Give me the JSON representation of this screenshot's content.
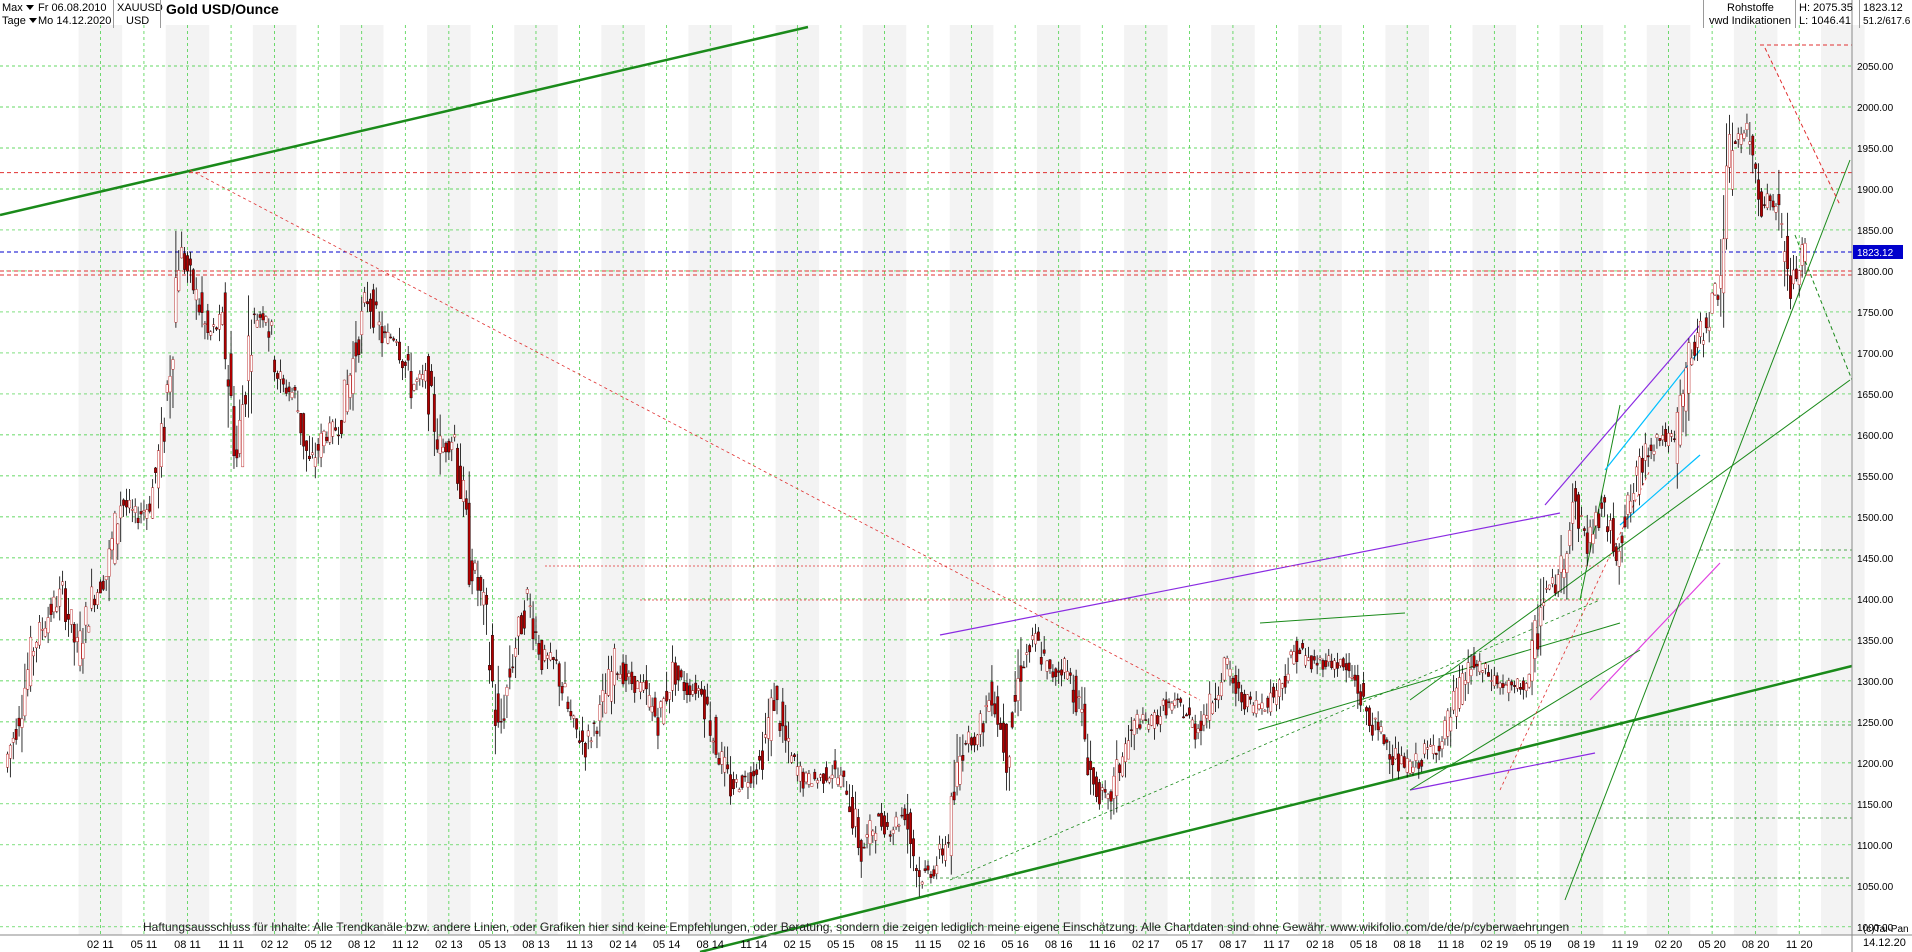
{
  "header": {
    "period": "Max",
    "interval": "Tage",
    "from_date": "Fr 06.08.2010",
    "to_date": "Mo 14.12.2020",
    "symbol": "XAUUSD",
    "currency": "USD",
    "title": "Gold USD/Ounce",
    "category": "Rohstoffe",
    "source": "vwd Indikationen",
    "high": "H: 2075.35",
    "low": "L: 1046.41",
    "last": "1823.12",
    "ratio": "51.2/617.6"
  },
  "footer": {
    "disclaimer": "Haftungsausschluss für Inhalte: Alle Trendkanäle bzw. andere Linien, oder Grafiken hier sind keine Empfehlungen, oder Beratung, sondern die zeigen lediglich meine eigene Einschätzung. Alle Chartdaten sind ohne Gewähr.  www.wikifolio.com/de/de/p/cyberwaehrungen",
    "copyright": "(c)Tai-Pan",
    "end_date": "14.12.20"
  },
  "colors": {
    "candle": "#b00000",
    "grid": "#33cc33",
    "trend_green": "#1a8a1a",
    "trend_purple": "#8a2be2",
    "trend_red": "#e03030",
    "current_price": "#0000cc",
    "cyan": "#00bfff",
    "magenta": "#e040e0"
  },
  "chart_data": {
    "type": "line",
    "title": "Gold USD/Ounce",
    "xlabel": "",
    "ylabel": "",
    "ylim": [
      990,
      2100
    ],
    "y_ticks": [
      1000,
      1050,
      1100,
      1150,
      1200,
      1250,
      1300,
      1350,
      1400,
      1450,
      1500,
      1550,
      1600,
      1650,
      1700,
      1750,
      1800,
      1850,
      1900,
      1950,
      2000,
      2050
    ],
    "x_ticks": [
      "02 11",
      "05 11",
      "08 11",
      "11 11",
      "02 12",
      "05 12",
      "08 12",
      "11 12",
      "02 13",
      "05 13",
      "08 13",
      "11 13",
      "02 14",
      "05 14",
      "08 14",
      "11 14",
      "02 15",
      "05 15",
      "08 15",
      "11 15",
      "02 16",
      "05 16",
      "08 16",
      "11 16",
      "02 17",
      "05 17",
      "08 17",
      "11 17",
      "02 18",
      "05 18",
      "08 18",
      "11 18",
      "02 19",
      "05 19",
      "08 19",
      "11 19",
      "02 20",
      "05 20",
      "08 20",
      "11 20"
    ],
    "current_price": 1823.12,
    "series": [
      {
        "x": [
          "08.2010",
          "09.2010",
          "10.2010",
          "11.2010",
          "12.2010",
          "01.2011",
          "02.2011",
          "03.2011",
          "04.2011",
          "05.2011",
          "06.2011",
          "07.2011",
          "08.2011",
          "09.2011",
          "10.2011",
          "11.2011",
          "12.2011",
          "01.2012",
          "02.2012",
          "03.2012",
          "04.2012",
          "05.2012",
          "06.2012",
          "07.2012",
          "08.2012",
          "09.2012",
          "10.2012",
          "11.2012",
          "12.2012",
          "01.2013",
          "02.2013",
          "03.2013",
          "04.2013",
          "05.2013",
          "06.2013",
          "07.2013",
          "08.2013",
          "09.2013",
          "10.2013",
          "11.2013",
          "12.2013",
          "01.2014",
          "02.2014",
          "03.2014",
          "04.2014",
          "05.2014",
          "06.2014",
          "07.2014",
          "08.2014",
          "09.2014",
          "10.2014",
          "11.2014",
          "12.2014",
          "01.2015",
          "02.2015",
          "03.2015",
          "04.2015",
          "05.2015",
          "06.2015",
          "07.2015",
          "08.2015",
          "09.2015",
          "10.2015",
          "11.2015",
          "12.2015",
          "01.2016",
          "02.2016",
          "03.2016",
          "04.2016",
          "05.2016",
          "06.2016",
          "07.2016",
          "08.2016",
          "09.2016",
          "10.2016",
          "11.2016",
          "12.2016",
          "01.2017",
          "02.2017",
          "03.2017",
          "04.2017",
          "05.2017",
          "06.2017",
          "07.2017",
          "08.2017",
          "09.2017",
          "10.2017",
          "11.2017",
          "12.2017",
          "01.2018",
          "02.2018",
          "03.2018",
          "04.2018",
          "05.2018",
          "06.2018",
          "07.2018",
          "08.2018",
          "09.2018",
          "10.2018",
          "11.2018",
          "12.2018",
          "01.2019",
          "02.2019",
          "03.2019",
          "04.2019",
          "05.2019",
          "06.2019",
          "07.2019",
          "08.2019",
          "09.2019",
          "10.2019",
          "11.2019",
          "12.2019",
          "01.2020",
          "02.2020",
          "03.2020",
          "04.2020",
          "05.2020",
          "06.2020",
          "07.2020",
          "08.2020",
          "09.2020",
          "10.2020",
          "11.2020",
          "12.2020"
        ],
        "values": [
          1195,
          1260,
          1345,
          1380,
          1410,
          1335,
          1400,
          1430,
          1520,
          1500,
          1515,
          1610,
          1830,
          1780,
          1720,
          1740,
          1570,
          1740,
          1750,
          1660,
          1650,
          1560,
          1600,
          1610,
          1690,
          1770,
          1720,
          1720,
          1660,
          1670,
          1580,
          1600,
          1450,
          1390,
          1230,
          1330,
          1400,
          1330,
          1320,
          1250,
          1220,
          1260,
          1320,
          1300,
          1290,
          1250,
          1310,
          1290,
          1290,
          1220,
          1170,
          1180,
          1200,
          1280,
          1210,
          1180,
          1180,
          1190,
          1170,
          1090,
          1130,
          1120,
          1140,
          1060,
          1070,
          1110,
          1230,
          1230,
          1290,
          1210,
          1320,
          1350,
          1305,
          1320,
          1270,
          1170,
          1150,
          1210,
          1250,
          1250,
          1270,
          1270,
          1240,
          1270,
          1320,
          1280,
          1270,
          1275,
          1300,
          1340,
          1320,
          1325,
          1320,
          1300,
          1250,
          1230,
          1200,
          1195,
          1215,
          1225,
          1280,
          1320,
          1310,
          1295,
          1290,
          1300,
          1410,
          1420,
          1520,
          1470,
          1510,
          1460,
          1520,
          1580,
          1600,
          1590,
          1690,
          1730,
          1780,
          1960,
          1970,
          1890,
          1880,
          1780,
          1823
        ]
      }
    ],
    "horizontal_levels": [
      1920,
      1800,
      1795
    ],
    "high_marker": 2075.35,
    "low_marker": 1046.41
  }
}
